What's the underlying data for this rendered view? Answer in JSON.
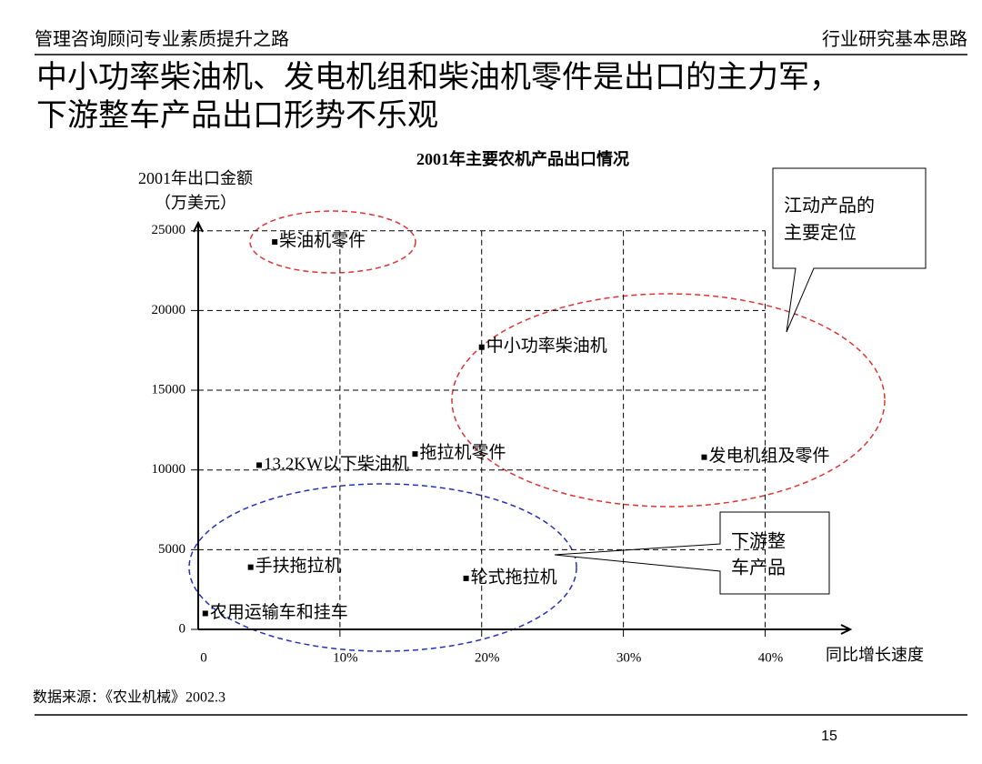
{
  "header": {
    "left": "管理咨询顾问专业素质提升之路",
    "right": "行业研究基本思路"
  },
  "title": [
    "中小功率柴油机、发电机组和柴油机零件是出口的主力军，",
    "下游整车产品出口形势不乐观"
  ],
  "chart_data": {
    "type": "scatter",
    "title": "2001年主要农机产品出口情况",
    "y_label": [
      "2001年出口金额",
      "（万美元）"
    ],
    "x_label": "同比增长速度",
    "labels": [
      "柴油机零件",
      "中小功率柴油机",
      "13.2KW以下柴油机",
      "拖拉机零件",
      "发电机组及零件",
      "手扶拖拉机",
      "轮式拖拉机",
      "农用运输车和挂车"
    ],
    "x": [
      5.4,
      20.0,
      4.3,
      15.3,
      35.7,
      3.7,
      18.9,
      0.5
    ],
    "y": [
      24300,
      17700,
      10300,
      11000,
      10800,
      3900,
      3200,
      1000
    ],
    "xlim": [
      0,
      46
    ],
    "ylim": [
      0,
      25500
    ],
    "xticks": [
      0,
      {
        "value": 10,
        "label": "10%"
      },
      {
        "value": 20,
        "label": "20%"
      },
      {
        "value": 30,
        "label": "30%"
      },
      {
        "value": 40,
        "label": "40%"
      }
    ],
    "yticks": [
      0,
      5000,
      10000,
      15000,
      20000,
      25000
    ],
    "grid": true
  },
  "callouts": [
    [
      "江动产品的",
      "主要定位"
    ],
    [
      "下游整",
      "车产品"
    ]
  ],
  "footer": {
    "source": "数据来源：《农业机械》2002.3",
    "page": "15"
  }
}
